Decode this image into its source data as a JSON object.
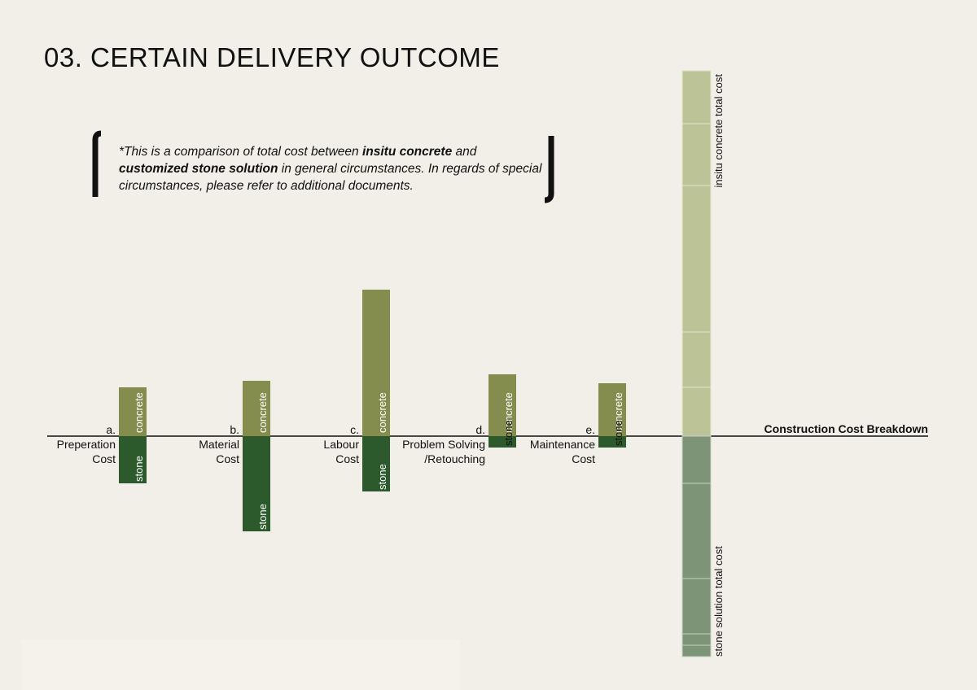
{
  "page": {
    "title": "03. CERTAIN DELIVERY OUTCOME"
  },
  "note": {
    "prefix": "*This is a comparison of total cost between ",
    "bold1": "insitu concrete",
    "mid": " and ",
    "bold2": "customized stone solution",
    "suffix": " in general circumstances. In regards of special circumstances, please refer to additional documents."
  },
  "colors": {
    "concrete": "#848c4e",
    "stone": "#2c5a2c",
    "total_concrete": "#bcc396",
    "total_stone": "#7e9477",
    "axis": "#111111"
  },
  "chart_data": {
    "type": "bar",
    "title": "Construction Cost Breakdown",
    "categories": [
      {
        "letter": "a.",
        "label": [
          "Preperation",
          "Cost"
        ]
      },
      {
        "letter": "b.",
        "label": [
          "Material",
          "Cost"
        ]
      },
      {
        "letter": "c.",
        "label": [
          "Labour",
          "Cost"
        ]
      },
      {
        "letter": "d.",
        "label": [
          "Problem Solving",
          "/Retouching"
        ]
      },
      {
        "letter": "e.",
        "label": [
          "Maintenance",
          "Cost"
        ]
      }
    ],
    "series": [
      {
        "name": "concrete",
        "values": [
          60,
          68,
          180,
          76,
          65
        ]
      },
      {
        "name": "stone",
        "values": [
          58,
          117,
          68,
          14,
          14
        ]
      }
    ],
    "totals": [
      {
        "name": "insitu concrete total cost",
        "segments": [
          60,
          68,
          180,
          76,
          65
        ]
      },
      {
        "name": "stone solution total cost",
        "segments": [
          58,
          117,
          68,
          14,
          14
        ]
      }
    ]
  }
}
